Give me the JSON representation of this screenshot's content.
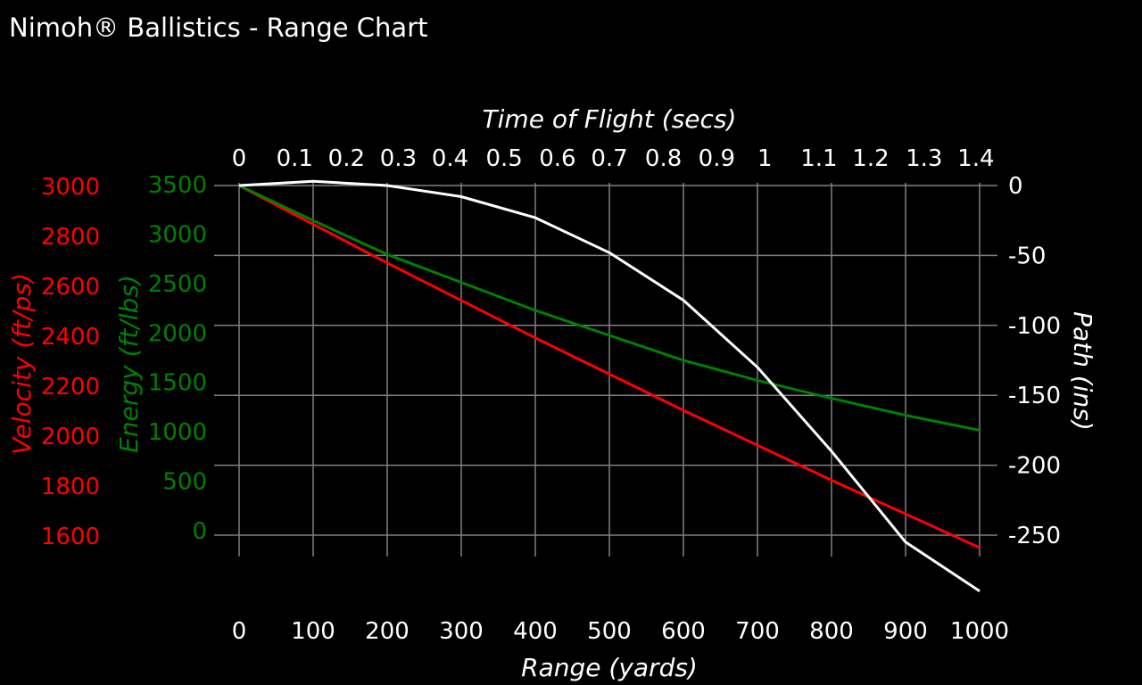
{
  "app": {
    "title": "Nimoh® Ballistics - Range Chart"
  },
  "colors": {
    "background": "#000000",
    "grid": "#808080",
    "velocity": "#ff0000",
    "energy": "#008000",
    "path": "#ffffff",
    "text": "#ffffff"
  },
  "chart_data": {
    "type": "line",
    "title": "",
    "grid": true,
    "axes": {
      "range": {
        "label": "Range (yards)",
        "position": "bottom",
        "min": 0,
        "max": 1000,
        "ticks": [
          "0",
          "100",
          "200",
          "300",
          "400",
          "500",
          "600",
          "700",
          "800",
          "900",
          "1000"
        ]
      },
      "time": {
        "label": "Time of Flight (secs)",
        "position": "top",
        "ticks": [
          {
            "label": "0",
            "range": 0
          },
          {
            "label": "0.1",
            "range": 75
          },
          {
            "label": "0.2",
            "range": 145
          },
          {
            "label": "0.3",
            "range": 215
          },
          {
            "label": "0.4",
            "range": 285
          },
          {
            "label": "0.5",
            "range": 358
          },
          {
            "label": "0.6",
            "range": 430
          },
          {
            "label": "0.7",
            "range": 500
          },
          {
            "label": "0.8",
            "range": 573
          },
          {
            "label": "0.9",
            "range": 645
          },
          {
            "label": "1",
            "range": 710
          },
          {
            "label": "1.1",
            "range": 783
          },
          {
            "label": "1.2",
            "range": 853
          },
          {
            "label": "1.3",
            "range": 925
          },
          {
            "label": "1.4",
            "range": 995
          }
        ]
      },
      "velocity": {
        "label": "Velocity (ft/ps)",
        "position": "left-outer",
        "min": 1600,
        "max": 3000,
        "ticks": [
          "3000",
          "2800",
          "2600",
          "2400",
          "2200",
          "2000",
          "1800",
          "1600"
        ]
      },
      "energy": {
        "label": "Energy (ft/lbs)",
        "position": "left-inner",
        "min": 0,
        "max": 3500,
        "ticks": [
          "3500",
          "3000",
          "2500",
          "2000",
          "1500",
          "1000",
          "500",
          "0"
        ]
      },
      "path": {
        "label": "Path (ins)",
        "position": "right",
        "min": -250,
        "max": 0,
        "ticks": [
          "0",
          "-50",
          "-100",
          "-150",
          "-200",
          "-250"
        ]
      }
    },
    "x": [
      0,
      100,
      200,
      300,
      400,
      500,
      600,
      700,
      800,
      900,
      1000
    ],
    "series": [
      {
        "name": "Velocity (ft/ps)",
        "axis": "velocity",
        "color": "#ff0000",
        "values": [
          3000,
          2845,
          2690,
          2540,
          2390,
          2245,
          2100,
          1960,
          1820,
          1685,
          1550
        ]
      },
      {
        "name": "Energy (ft/lbs)",
        "axis": "energy",
        "color": "#008000",
        "values": [
          3500,
          3150,
          2810,
          2530,
          2250,
          2000,
          1750,
          1550,
          1370,
          1200,
          1050
        ]
      },
      {
        "name": "Path (ins)",
        "axis": "path",
        "color": "#ffffff",
        "values": [
          0,
          3,
          0,
          -8,
          -23,
          -48,
          -82,
          -130,
          -190,
          -255,
          -290
        ]
      }
    ]
  }
}
